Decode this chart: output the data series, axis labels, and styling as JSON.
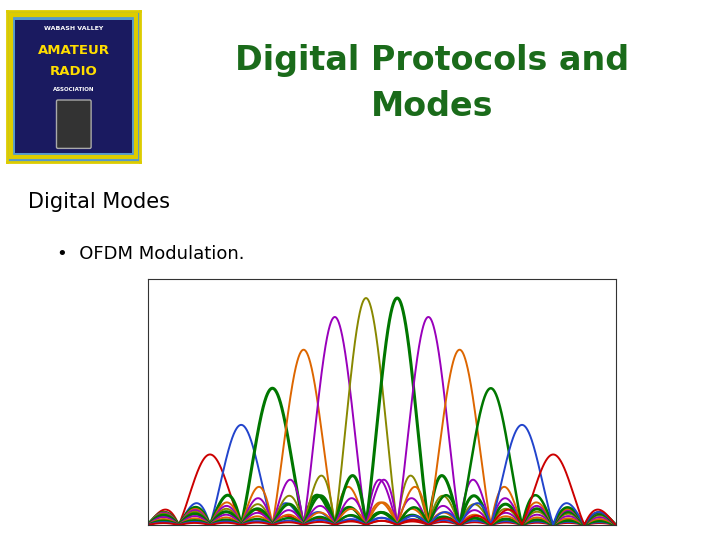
{
  "title": "Digital Protocols and\nModes",
  "title_color": "#1a6b1a",
  "subtitle": "Digital Modes",
  "bullet": "OFDM Modulation.",
  "bg_color": "#ffffff",
  "title_fontsize": 24,
  "subtitle_fontsize": 15,
  "bullet_fontsize": 13,
  "subcarrier_params": [
    [
      -5.5,
      "#cc0000",
      1.4
    ],
    [
      -4.5,
      "#2244cc",
      1.4
    ],
    [
      -3.5,
      "#007700",
      2.2
    ],
    [
      -2.5,
      "#dd6600",
      1.4
    ],
    [
      -1.5,
      "#9900bb",
      1.4
    ],
    [
      -0.5,
      "#888800",
      1.4
    ],
    [
      0.5,
      "#007700",
      2.2
    ],
    [
      1.5,
      "#9900bb",
      1.4
    ],
    [
      2.5,
      "#dd6600",
      1.4
    ],
    [
      3.5,
      "#007700",
      1.8
    ],
    [
      4.5,
      "#2244cc",
      1.4
    ],
    [
      5.5,
      "#cc0000",
      1.4
    ]
  ]
}
